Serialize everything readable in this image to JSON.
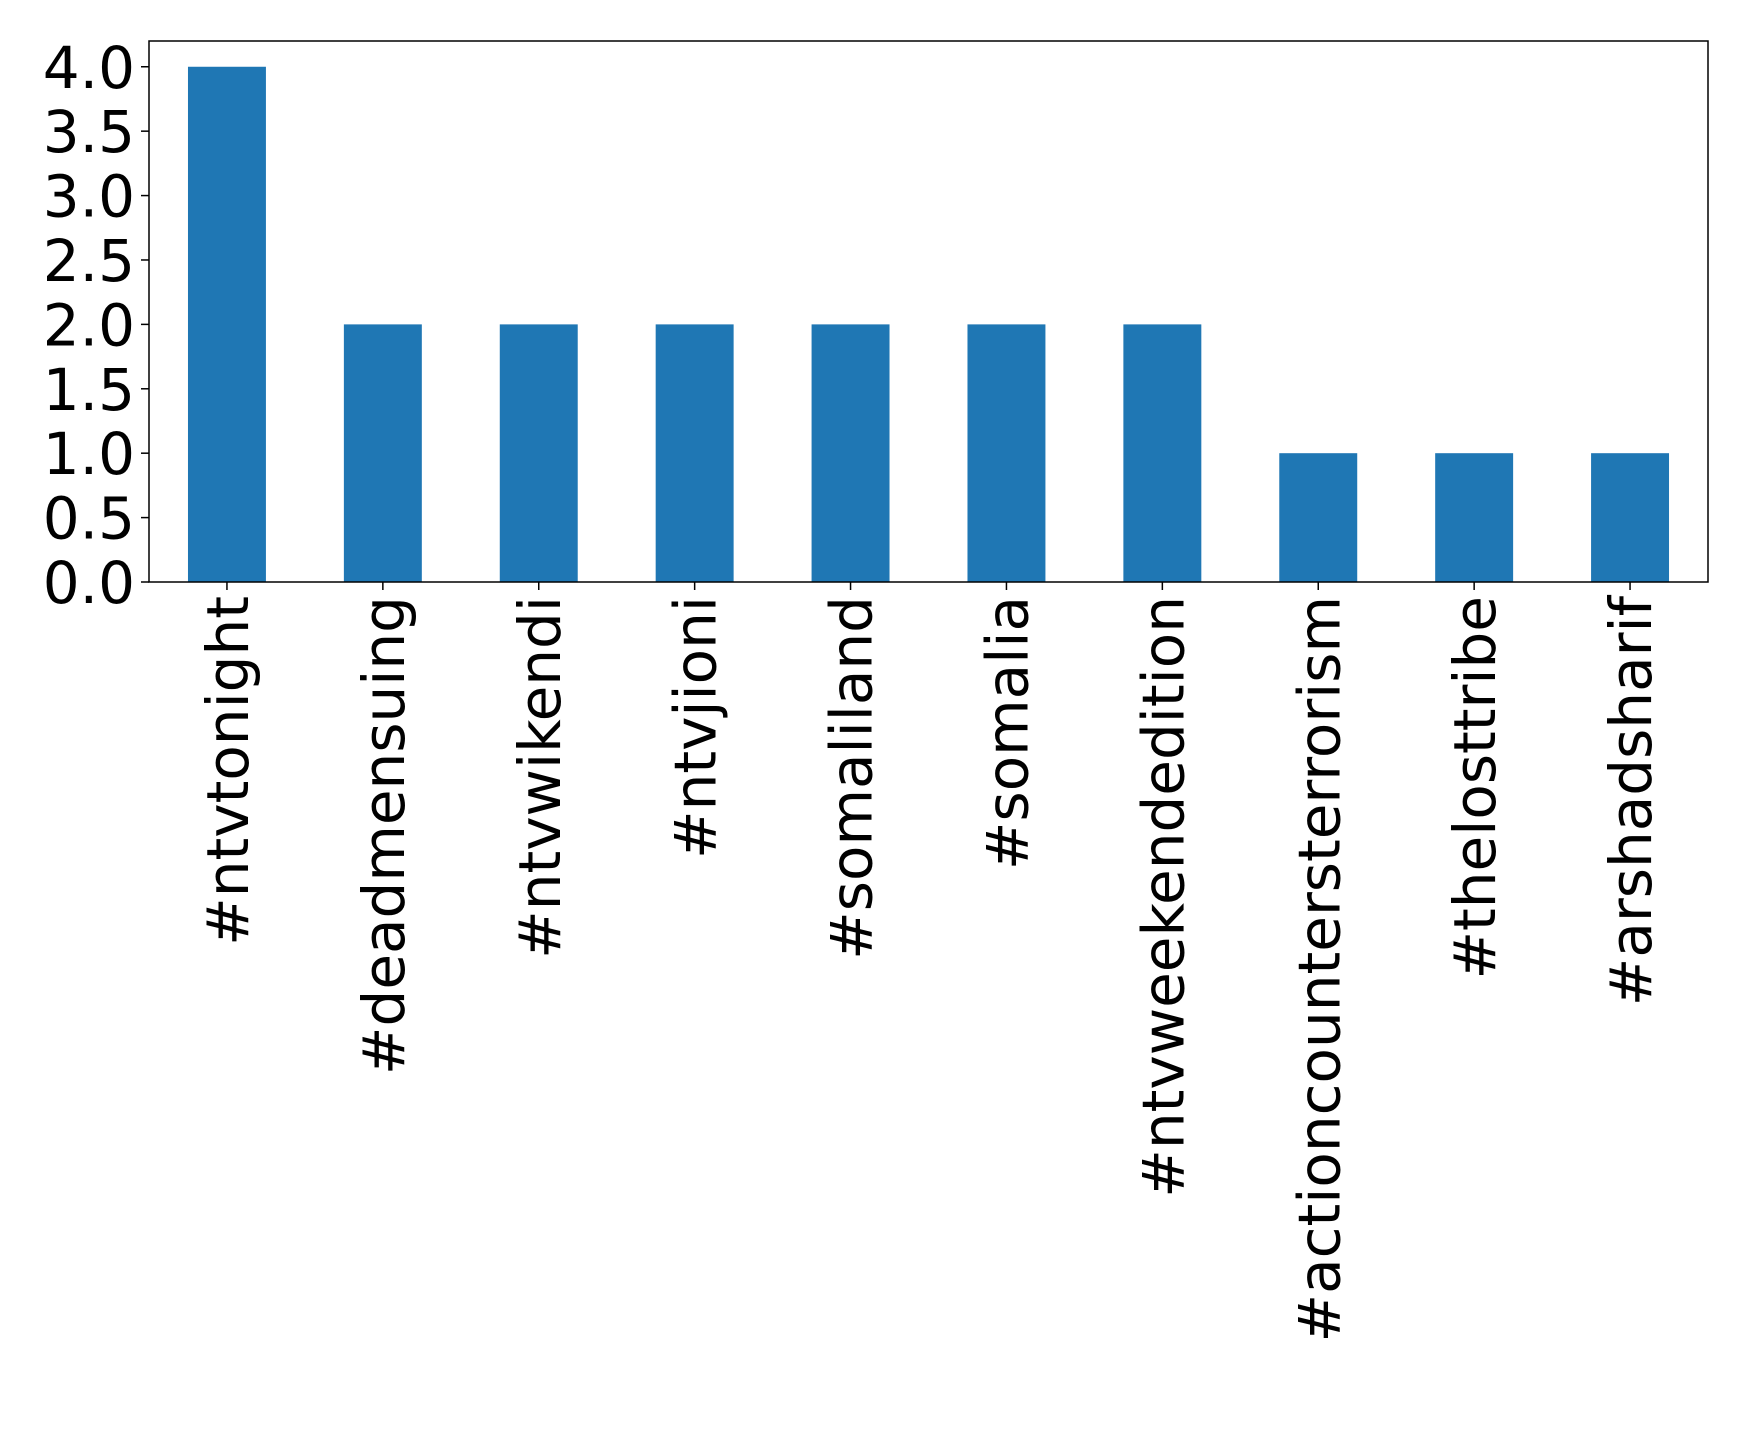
{
  "chart_data": {
    "type": "bar",
    "categories": [
      "#ntvtonight",
      "#deadmensuing",
      "#ntvwikendi",
      "#ntvjioni",
      "#somaliland",
      "#somalia",
      "#ntvweekendedition",
      "#actioncountersterrorism",
      "#thelosttribe",
      "#arshadsharif"
    ],
    "values": [
      4,
      2,
      2,
      2,
      2,
      2,
      2,
      1,
      1,
      1
    ],
    "color": "#1f77b4",
    "ylim": [
      0,
      4.2
    ],
    "yticks": [
      {
        "value": 0,
        "label": "0.0"
      },
      {
        "value": 0.5,
        "label": "0.5"
      },
      {
        "value": 1,
        "label": "1.0"
      },
      {
        "value": 1.5,
        "label": "1.5"
      },
      {
        "value": 2,
        "label": "2.0"
      },
      {
        "value": 2.5,
        "label": "2.5"
      },
      {
        "value": 3,
        "label": "3.0"
      },
      {
        "value": 3.5,
        "label": "3.5"
      },
      {
        "value": 4,
        "label": "4.0"
      }
    ],
    "grid": false
  }
}
